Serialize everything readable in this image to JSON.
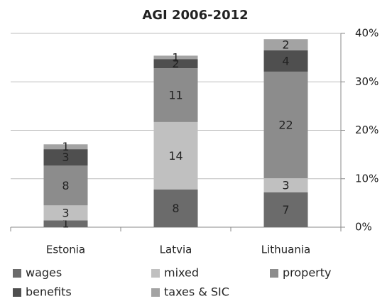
{
  "chart_data": {
    "type": "stacked-bar",
    "title": "AGI 2006-2012",
    "categories": [
      "Estonia",
      "Latvia",
      "Lithuania"
    ],
    "series": [
      {
        "name": "wages",
        "color": "#6b6b6b",
        "values": [
          1.4,
          7.8,
          7.2
        ],
        "value_labels": [
          "1",
          "8",
          "7"
        ]
      },
      {
        "name": "mixed",
        "color": "#c0c0c0",
        "values": [
          3.1,
          13.9,
          2.9
        ],
        "value_labels": [
          "3",
          "14",
          "3"
        ]
      },
      {
        "name": "property",
        "color": "#8c8c8c",
        "values": [
          8.2,
          11.1,
          22.0
        ],
        "value_labels": [
          "8",
          "11",
          "22"
        ]
      },
      {
        "name": "benefits",
        "color": "#4f4f4f",
        "values": [
          3.4,
          1.9,
          4.4
        ],
        "value_labels": [
          "3",
          "2",
          "4"
        ]
      },
      {
        "name": "taxes & SIC",
        "color": "#a3a3a3",
        "values": [
          1.0,
          0.7,
          2.3
        ],
        "value_labels": [
          "1",
          "1",
          "2"
        ]
      }
    ],
    "ylim": [
      0,
      40
    ],
    "yticks": [
      {
        "value": 0,
        "label": "0%"
      },
      {
        "value": 10,
        "label": "10%"
      },
      {
        "value": 20,
        "label": "20%"
      },
      {
        "value": 30,
        "label": "30%"
      },
      {
        "value": 40,
        "label": "40%"
      }
    ],
    "y_axis_side": "right",
    "grid": true,
    "legend": "bottom"
  }
}
